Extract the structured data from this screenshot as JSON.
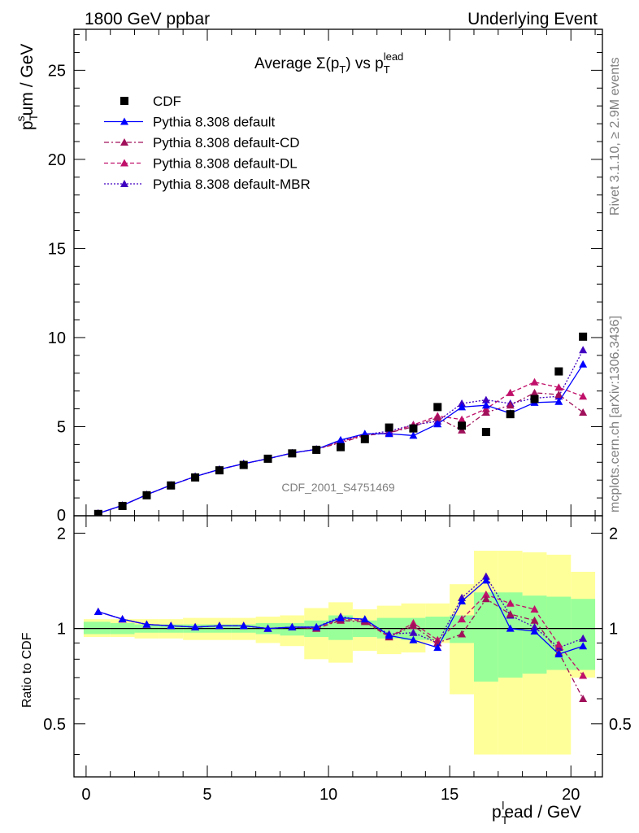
{
  "header": {
    "left": "1800 GeV ppbar",
    "right": "Underlying Event"
  },
  "side_labels": {
    "top": "Rivet 3.1.10, ≥ 2.9M events",
    "bottom": "mcplots.cern.ch [arXiv:1306.3436]"
  },
  "watermark": "CDF_2001_S4751469",
  "title": {
    "prefix": "Average Σ(p",
    "sub1": "T",
    "mid": ") vs p",
    "sub2": "T",
    "sup2": "lead"
  },
  "axes": {
    "ylabel_main": {
      "base": "p",
      "sub": "T",
      "sup": "s",
      "rest": "um / GeV"
    },
    "ylabel_ratio": "Ratio to CDF",
    "xlabel": {
      "base": "p",
      "sub": "T",
      "sup": "l",
      "rest": "ead / GeV"
    }
  },
  "colors": {
    "data": "#000000",
    "default": "#0000ff",
    "default_CD": "#a0105a",
    "default_DL": "#c0106a",
    "default_MBR": "#4000c0",
    "band_inner": "#99ff99",
    "band_outer": "#ffff99"
  },
  "chart_data": [
    {
      "type": "scatter",
      "panel": "main",
      "title": "Average Σ(pT) vs pT lead",
      "xlabel": "pT lead / GeV",
      "ylabel": "pT sum / GeV",
      "xlim": [
        -0.5,
        21.3
      ],
      "ylim": [
        0,
        27.3
      ],
      "x_ticks": [
        0,
        5,
        10,
        15,
        20
      ],
      "y_ticks": [
        5,
        10,
        15,
        20,
        25
      ],
      "y_tick_labels": [
        "5",
        "10",
        "15",
        "20",
        "25"
      ],
      "y_zero_label": "0",
      "legend_position": "top-left",
      "x": [
        0.5,
        1.5,
        2.5,
        3.5,
        4.5,
        5.5,
        6.5,
        7.5,
        8.5,
        9.5,
        10.5,
        11.5,
        12.5,
        13.5,
        14.5,
        15.5,
        16.5,
        17.5,
        18.5,
        19.5,
        20.5
      ],
      "series": [
        {
          "name": "CDF",
          "marker": "square",
          "line": "none",
          "values": [
            0.1,
            0.55,
            1.15,
            1.7,
            2.15,
            2.55,
            2.85,
            3.2,
            3.5,
            3.7,
            3.85,
            4.3,
            4.95,
            4.9,
            6.1,
            5.05,
            4.7,
            5.7,
            6.55,
            8.1,
            10.05
          ]
        },
        {
          "name": "Pythia 8.308 default",
          "marker": "triangle",
          "line": "solid",
          "values": [
            0.13,
            0.58,
            1.18,
            1.72,
            2.2,
            2.6,
            2.92,
            3.2,
            3.52,
            3.73,
            4.25,
            4.6,
            4.6,
            4.5,
            5.15,
            6.1,
            6.2,
            5.75,
            6.35,
            6.4,
            8.5
          ]
        },
        {
          "name": "Pythia 8.308 default-CD",
          "marker": "triangle",
          "line": "dashdot",
          "values": [
            0.13,
            0.58,
            1.18,
            1.72,
            2.2,
            2.6,
            2.92,
            3.2,
            3.52,
            3.73,
            4.1,
            4.5,
            4.65,
            5.0,
            5.5,
            4.8,
            5.8,
            6.2,
            6.9,
            6.8,
            5.8
          ]
        },
        {
          "name": "Pythia 8.308 default-DL",
          "marker": "triangle",
          "line": "dashed",
          "values": [
            0.13,
            0.58,
            1.18,
            1.72,
            2.2,
            2.6,
            2.92,
            3.2,
            3.52,
            3.73,
            4.15,
            4.55,
            4.65,
            5.1,
            5.6,
            5.4,
            6.0,
            6.9,
            7.5,
            7.2,
            6.7
          ]
        },
        {
          "name": "Pythia 8.308 default-MBR",
          "marker": "triangle",
          "line": "dotted",
          "values": [
            0.13,
            0.58,
            1.18,
            1.72,
            2.2,
            2.6,
            2.92,
            3.2,
            3.52,
            3.73,
            4.2,
            4.55,
            4.75,
            5.1,
            5.3,
            6.3,
            6.5,
            6.3,
            6.6,
            6.7,
            9.3
          ]
        }
      ]
    },
    {
      "type": "scatter",
      "panel": "ratio",
      "xlabel": "pT lead / GeV",
      "ylabel": "Ratio to CDF",
      "xlim": [
        -0.5,
        21.3
      ],
      "ylim": [
        0.34,
        2.27
      ],
      "x_ticks": [
        0,
        5,
        10,
        15,
        20
      ],
      "y_ticks": [
        0.5,
        1,
        2
      ],
      "y_tick_labels": [
        "0.5",
        "1",
        "2"
      ],
      "reference_line": 1,
      "x": [
        0.5,
        1.5,
        2.5,
        3.5,
        4.5,
        5.5,
        6.5,
        7.5,
        8.5,
        9.5,
        10.5,
        11.5,
        12.5,
        13.5,
        14.5,
        15.5,
        16.5,
        17.5,
        18.5,
        19.5,
        20.5
      ],
      "band_edges": [
        -0.1,
        1,
        2,
        3,
        4,
        5,
        6,
        7,
        8,
        9,
        10,
        11,
        12,
        13,
        14,
        15,
        16,
        17,
        18,
        19,
        20,
        21
      ],
      "band_inner": [
        [
          0.96,
          1.05
        ],
        [
          0.96,
          1.04
        ],
        [
          0.97,
          1.03
        ],
        [
          0.97,
          1.03
        ],
        [
          0.97,
          1.03
        ],
        [
          0.97,
          1.03
        ],
        [
          0.97,
          1.03
        ],
        [
          0.96,
          1.04
        ],
        [
          0.95,
          1.04
        ],
        [
          0.94,
          1.06
        ],
        [
          0.92,
          1.1
        ],
        [
          0.94,
          1.06
        ],
        [
          0.93,
          1.08
        ],
        [
          0.92,
          1.08
        ],
        [
          0.92,
          1.09
        ],
        [
          0.9,
          1.1
        ],
        [
          0.68,
          1.3
        ],
        [
          0.7,
          1.3
        ],
        [
          0.72,
          1.27
        ],
        [
          0.74,
          1.26
        ],
        [
          0.74,
          1.24
        ]
      ],
      "band_outer": [
        [
          0.94,
          1.07
        ],
        [
          0.94,
          1.07
        ],
        [
          0.93,
          1.07
        ],
        [
          0.93,
          1.07
        ],
        [
          0.92,
          1.08
        ],
        [
          0.92,
          1.08
        ],
        [
          0.92,
          1.08
        ],
        [
          0.9,
          1.09
        ],
        [
          0.88,
          1.1
        ],
        [
          0.8,
          1.16
        ],
        [
          0.78,
          1.21
        ],
        [
          0.85,
          1.15
        ],
        [
          0.83,
          1.18
        ],
        [
          0.84,
          1.2
        ],
        [
          0.9,
          1.2
        ],
        [
          0.62,
          1.38
        ],
        [
          0.4,
          1.76
        ],
        [
          0.4,
          1.76
        ],
        [
          0.4,
          1.74
        ],
        [
          0.4,
          1.71
        ],
        [
          0.7,
          1.51
        ]
      ],
      "series": [
        {
          "name": "Pythia 8.308 default",
          "line": "solid",
          "values": [
            1.13,
            1.07,
            1.03,
            1.02,
            1.01,
            1.02,
            1.02,
            1.0,
            1.01,
            1.01,
            1.08,
            1.07,
            0.95,
            0.92,
            0.87,
            1.22,
            1.42,
            1.0,
            0.98,
            0.83,
            0.88
          ]
        },
        {
          "name": "Pythia 8.308 default-CD",
          "line": "dashdot",
          "values": [
            1.13,
            1.07,
            1.03,
            1.02,
            1.01,
            1.02,
            1.02,
            1.0,
            1.01,
            1.0,
            1.06,
            1.05,
            0.94,
            1.02,
            0.9,
            0.96,
            1.24,
            1.11,
            1.06,
            0.84,
            0.6
          ]
        },
        {
          "name": "Pythia 8.308 default-DL",
          "line": "dashed",
          "values": [
            1.13,
            1.07,
            1.03,
            1.02,
            1.01,
            1.02,
            1.02,
            1.0,
            1.01,
            1.0,
            1.07,
            1.06,
            0.94,
            1.04,
            0.92,
            1.07,
            1.28,
            1.2,
            1.15,
            0.89,
            0.71
          ]
        },
        {
          "name": "Pythia 8.308 default-MBR",
          "line": "dotted",
          "values": [
            1.13,
            1.07,
            1.03,
            1.02,
            1.01,
            1.02,
            1.02,
            1.0,
            1.01,
            1.01,
            1.09,
            1.06,
            0.96,
            0.97,
            0.9,
            1.25,
            1.46,
            1.1,
            1.01,
            0.87,
            0.93
          ]
        }
      ]
    }
  ]
}
